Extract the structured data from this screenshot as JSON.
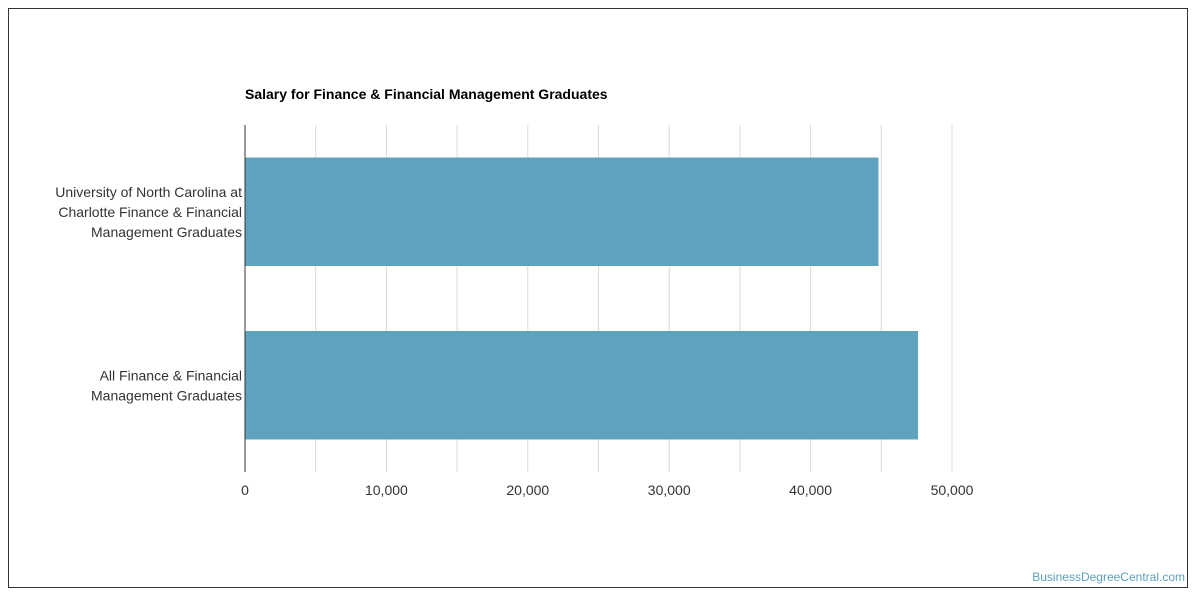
{
  "watermark": "BusinessDegreeCentral.com",
  "colors": {
    "bar": "#5ea2be",
    "grid": "#d9d9d9",
    "axis": "#333333",
    "text": "#333333"
  },
  "chart_data": {
    "type": "bar",
    "orientation": "horizontal",
    "title": "Salary for Finance & Financial Management Graduates",
    "categories": [
      [
        "University of North Carolina at",
        "Charlotte Finance & Financial",
        "Management Graduates"
      ],
      [
        "All Finance & Financial",
        "Management Graduates"
      ]
    ],
    "values": [
      44800,
      47600
    ],
    "xlim": [
      0,
      50000
    ],
    "xticks": [
      0,
      10000,
      20000,
      30000,
      40000,
      50000
    ],
    "xtick_labels": [
      "0",
      "10,000",
      "20,000",
      "30,000",
      "40,000",
      "50,000"
    ],
    "grid": true,
    "xlabel": "",
    "ylabel": ""
  }
}
